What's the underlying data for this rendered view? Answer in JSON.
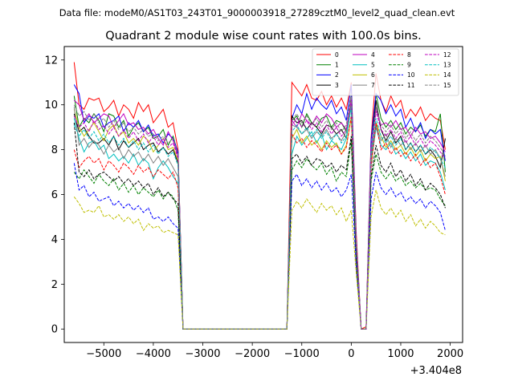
{
  "chart_data": {
    "type": "line",
    "suptitle": "Data file: modeM0/AS1T03_243T01_9000003918_27289cztM0_level2_quad_clean.evt",
    "title": "Quadrant 2 module wise count rates with 100.0s bins.",
    "xlabel": "",
    "ylabel": "",
    "offset_label": "+3.404e8",
    "xlim": [
      -5800,
      2250
    ],
    "ylim": [
      -0.6,
      12.6
    ],
    "xticks": [
      -5000,
      -4000,
      -3000,
      -2000,
      -1000,
      0,
      1000,
      2000
    ],
    "xtick_labels": [
      "−5000",
      "−4000",
      "−3000",
      "−2000",
      "−1000",
      "0",
      "1000",
      "2000"
    ],
    "yticks": [
      0,
      2,
      4,
      6,
      8,
      10,
      12
    ],
    "ytick_labels": [
      "0",
      "2",
      "4",
      "6",
      "8",
      "10",
      "12"
    ],
    "legend_position": "upper-right",
    "x": [
      -5600,
      -5500,
      -5400,
      -5300,
      -5200,
      -5100,
      -5000,
      -4900,
      -4800,
      -4700,
      -4600,
      -4500,
      -4400,
      -4300,
      -4200,
      -4100,
      -4000,
      -3900,
      -3800,
      -3700,
      -3600,
      -3500,
      -3400,
      -1300,
      -1200,
      -1100,
      -1000,
      -900,
      -800,
      -700,
      -600,
      -500,
      -400,
      -300,
      -200,
      -100,
      0,
      100,
      200,
      300,
      400,
      500,
      600,
      700,
      800,
      900,
      1000,
      1100,
      1200,
      1300,
      1400,
      1500,
      1600,
      1700,
      1800,
      1900
    ],
    "series": [
      {
        "name": "0",
        "color": "#ff0000",
        "dash": "solid",
        "values": [
          11.9,
          10.0,
          9.8,
          10.3,
          10.2,
          10.3,
          9.7,
          9.9,
          10.2,
          9.5,
          10.0,
          9.8,
          9.4,
          10.1,
          9.7,
          10.0,
          9.2,
          9.5,
          9.8,
          9.0,
          9.2,
          8.0,
          0.0,
          0.0,
          11.0,
          10.7,
          10.4,
          10.9,
          10.3,
          10.2,
          10.6,
          10.0,
          10.4,
          9.9,
          10.3,
          9.8,
          11.0,
          4.3,
          0.0,
          0.1,
          8.5,
          11.4,
          10.2,
          9.7,
          10.4,
          9.9,
          10.2,
          9.4,
          9.8,
          9.5,
          9.9,
          9.3,
          9.6,
          9.4,
          9.3,
          8.0
        ]
      },
      {
        "name": "1",
        "color": "#008000",
        "dash": "solid",
        "values": [
          10.4,
          9.0,
          9.4,
          9.2,
          9.6,
          9.3,
          8.8,
          9.6,
          9.5,
          9.0,
          9.3,
          8.6,
          9.0,
          9.2,
          8.8,
          9.0,
          8.5,
          8.6,
          8.9,
          8.2,
          8.6,
          7.8,
          0.0,
          0.0,
          9.3,
          9.5,
          9.0,
          9.6,
          9.2,
          9.0,
          9.4,
          9.5,
          9.0,
          9.3,
          9.2,
          8.8,
          10.4,
          3.9,
          0.0,
          0.0,
          7.8,
          10.5,
          9.4,
          9.0,
          9.3,
          8.9,
          9.2,
          8.7,
          9.0,
          8.8,
          9.1,
          8.6,
          8.9,
          8.8,
          9.6,
          7.0
        ]
      },
      {
        "name": "2",
        "color": "#0000ff",
        "dash": "solid",
        "values": [
          10.9,
          10.5,
          9.2,
          9.5,
          9.4,
          9.6,
          9.0,
          9.2,
          9.3,
          9.5,
          8.8,
          9.2,
          9.0,
          9.3,
          8.8,
          9.1,
          8.6,
          8.7,
          8.3,
          8.7,
          8.5,
          7.9,
          0.0,
          0.0,
          9.4,
          10.0,
          9.6,
          10.5,
          9.8,
          10.3,
          10.0,
          9.8,
          10.2,
          9.6,
          9.9,
          9.3,
          10.9,
          4.0,
          0.0,
          0.0,
          8.4,
          10.5,
          10.2,
          9.6,
          10.0,
          9.5,
          9.8,
          9.0,
          9.4,
          8.8,
          9.2,
          8.5,
          8.9,
          8.7,
          8.9,
          7.5
        ]
      },
      {
        "name": "3",
        "color": "#000000",
        "dash": "solid",
        "values": [
          9.6,
          8.8,
          9.0,
          8.6,
          8.3,
          8.3,
          8.5,
          8.2,
          8.6,
          8.0,
          8.4,
          8.1,
          8.3,
          8.5,
          8.0,
          8.2,
          8.3,
          7.9,
          8.1,
          7.8,
          8.0,
          7.4,
          0.0,
          0.0,
          9.5,
          9.2,
          9.3,
          8.9,
          9.2,
          9.0,
          8.7,
          9.1,
          9.0,
          8.7,
          8.9,
          8.5,
          10.0,
          3.8,
          0.0,
          0.0,
          7.8,
          10.2,
          8.9,
          8.4,
          8.8,
          8.3,
          8.6,
          8.0,
          8.3,
          7.9,
          8.2,
          7.8,
          8.0,
          7.7,
          7.2,
          8.5
        ]
      },
      {
        "name": "4",
        "color": "#bf00bf",
        "dash": "solid",
        "values": [
          10.2,
          10.0,
          9.3,
          9.6,
          9.2,
          9.4,
          9.6,
          9.5,
          9.0,
          9.3,
          9.6,
          9.1,
          9.2,
          8.9,
          9.0,
          8.7,
          8.9,
          8.5,
          8.2,
          8.8,
          8.4,
          7.7,
          0.0,
          0.0,
          9.3,
          9.0,
          9.6,
          9.3,
          9.1,
          9.5,
          9.2,
          9.6,
          9.4,
          9.0,
          9.2,
          8.9,
          10.1,
          3.8,
          0.0,
          0.0,
          8.0,
          9.8,
          9.1,
          9.2,
          9.0,
          9.3,
          8.9,
          9.0,
          8.6,
          9.0,
          8.7,
          8.8,
          8.5,
          8.6,
          8.3,
          7.9
        ]
      },
      {
        "name": "5",
        "color": "#00bfbf",
        "dash": "solid",
        "values": [
          9.4,
          8.5,
          7.9,
          8.3,
          8.4,
          8.0,
          8.2,
          7.6,
          7.8,
          7.5,
          7.7,
          7.4,
          7.8,
          7.3,
          7.6,
          7.4,
          6.7,
          7.2,
          7.5,
          7.2,
          6.8,
          6.5,
          0.0,
          0.0,
          7.8,
          8.6,
          8.2,
          8.5,
          8.8,
          8.3,
          8.7,
          8.0,
          8.4,
          8.2,
          8.0,
          8.5,
          10.0,
          3.6,
          0.0,
          0.0,
          7.3,
          9.0,
          8.2,
          8.0,
          8.3,
          7.8,
          8.0,
          7.6,
          7.9,
          7.5,
          7.8,
          7.3,
          7.5,
          7.4,
          7.0,
          6.2
        ]
      },
      {
        "name": "6",
        "color": "#bfbf00",
        "dash": "solid",
        "values": [
          9.8,
          9.0,
          8.6,
          8.9,
          9.2,
          8.8,
          8.4,
          8.9,
          9.1,
          8.6,
          8.8,
          8.3,
          8.5,
          8.2,
          8.6,
          8.4,
          7.9,
          8.2,
          8.5,
          8.0,
          8.1,
          7.5,
          0.0,
          0.0,
          8.5,
          8.9,
          8.3,
          8.6,
          8.2,
          8.4,
          8.0,
          8.4,
          8.1,
          8.3,
          7.8,
          8.2,
          9.4,
          3.5,
          0.0,
          0.0,
          7.3,
          9.2,
          8.6,
          8.1,
          8.4,
          8.0,
          8.2,
          7.8,
          8.1,
          7.7,
          8.0,
          7.5,
          7.8,
          7.6,
          7.7,
          6.6
        ]
      },
      {
        "name": "7",
        "color": "#808080",
        "dash": "solid",
        "values": [
          9.9,
          8.2,
          8.5,
          8.1,
          8.4,
          8.2,
          7.8,
          8.2,
          7.9,
          8.1,
          7.6,
          8.0,
          7.7,
          7.9,
          7.5,
          7.8,
          7.4,
          7.7,
          7.3,
          7.6,
          7.2,
          6.8,
          0.0,
          0.0,
          9.1,
          9.0,
          8.7,
          8.9,
          8.5,
          8.8,
          8.6,
          8.9,
          8.5,
          8.7,
          8.4,
          8.8,
          10.0,
          3.7,
          0.0,
          0.0,
          7.6,
          9.1,
          8.4,
          8.7,
          8.1,
          8.5,
          8.2,
          8.4,
          8.0,
          8.3,
          7.9,
          8.2,
          7.8,
          8.0,
          7.6,
          6.8
        ]
      },
      {
        "name": "8",
        "color": "#ff0000",
        "dash": "dashed",
        "values": [
          8.0,
          7.2,
          7.5,
          7.7,
          7.4,
          7.6,
          7.1,
          7.5,
          7.3,
          7.0,
          7.4,
          7.2,
          6.9,
          7.3,
          7.0,
          7.2,
          6.8,
          7.1,
          6.9,
          6.7,
          7.0,
          6.3,
          0.0,
          0.0,
          8.7,
          8.3,
          8.5,
          8.1,
          8.4,
          8.2,
          7.9,
          8.3,
          8.0,
          8.2,
          7.8,
          8.1,
          9.5,
          3.6,
          0.0,
          0.0,
          7.2,
          9.2,
          8.0,
          8.3,
          7.8,
          8.1,
          7.7,
          7.9,
          7.5,
          7.8,
          7.3,
          7.6,
          7.2,
          7.4,
          6.8,
          6.0
        ]
      },
      {
        "name": "9",
        "color": "#008000",
        "dash": "dashed",
        "values": [
          7.0,
          6.7,
          7.1,
          6.8,
          6.5,
          6.9,
          6.6,
          6.4,
          6.7,
          6.2,
          6.5,
          6.1,
          6.4,
          6.0,
          6.3,
          6.1,
          5.9,
          6.2,
          5.8,
          6.1,
          5.9,
          5.3,
          0.0,
          0.0,
          7.1,
          7.5,
          7.2,
          7.6,
          7.3,
          7.1,
          7.4,
          6.9,
          7.2,
          6.6,
          7.0,
          6.8,
          8.4,
          3.1,
          0.0,
          0.0,
          6.6,
          7.8,
          7.0,
          6.7,
          7.0,
          6.6,
          6.8,
          6.4,
          6.6,
          6.3,
          6.5,
          6.2,
          6.3,
          6.2,
          5.8,
          5.5
        ]
      },
      {
        "name": "10",
        "color": "#0000ff",
        "dash": "dashed",
        "values": [
          7.4,
          6.2,
          6.4,
          5.9,
          6.1,
          5.7,
          5.8,
          5.9,
          5.5,
          5.7,
          5.4,
          5.6,
          5.3,
          5.5,
          5.2,
          5.4,
          4.9,
          5.0,
          4.8,
          5.0,
          4.7,
          4.5,
          0.0,
          0.0,
          6.6,
          6.9,
          6.4,
          6.7,
          6.3,
          6.6,
          6.2,
          6.5,
          6.1,
          6.3,
          5.9,
          6.2,
          6.9,
          2.8,
          0.0,
          0.0,
          5.8,
          7.0,
          6.3,
          6.0,
          6.3,
          5.9,
          6.1,
          5.7,
          5.9,
          5.6,
          5.8,
          5.4,
          5.7,
          5.5,
          5.2,
          4.4
        ]
      },
      {
        "name": "11",
        "color": "#000000",
        "dash": "dashed",
        "values": [
          9.2,
          7.0,
          6.8,
          7.1,
          6.7,
          6.9,
          7.0,
          6.8,
          6.6,
          6.8,
          6.5,
          6.7,
          6.4,
          6.6,
          6.3,
          6.5,
          6.0,
          6.3,
          5.9,
          6.1,
          5.8,
          5.6,
          0.0,
          0.0,
          7.6,
          7.8,
          7.4,
          7.7,
          7.3,
          7.6,
          7.5,
          7.2,
          7.4,
          7.0,
          7.3,
          7.1,
          8.6,
          3.2,
          0.0,
          0.0,
          6.8,
          8.2,
          7.3,
          7.0,
          7.4,
          6.8,
          7.1,
          6.6,
          6.9,
          6.4,
          6.7,
          6.2,
          6.5,
          6.3,
          6.0,
          5.4
        ]
      },
      {
        "name": "12",
        "color": "#bf00bf",
        "dash": "dashed",
        "values": [
          9.5,
          9.0,
          9.2,
          8.8,
          9.3,
          8.9,
          9.1,
          8.7,
          9.0,
          8.6,
          8.9,
          8.5,
          8.8,
          8.4,
          8.7,
          8.3,
          8.6,
          8.2,
          8.5,
          8.1,
          8.3,
          7.6,
          0.0,
          0.0,
          9.1,
          9.4,
          9.0,
          9.3,
          8.9,
          9.2,
          8.8,
          9.1,
          8.7,
          9.0,
          8.6,
          8.9,
          10.3,
          3.8,
          0.0,
          0.0,
          7.8,
          9.7,
          8.9,
          8.6,
          8.9,
          8.5,
          8.8,
          8.3,
          8.6,
          8.2,
          8.5,
          8.1,
          8.4,
          8.2,
          7.9,
          7.6
        ]
      },
      {
        "name": "13",
        "color": "#00bfbf",
        "dash": "dashed",
        "values": [
          9.1,
          8.6,
          8.9,
          8.5,
          8.8,
          8.4,
          8.7,
          8.3,
          8.6,
          8.2,
          8.5,
          8.1,
          8.4,
          8.0,
          8.3,
          7.9,
          8.2,
          7.8,
          8.1,
          7.7,
          7.9,
          7.3,
          0.0,
          0.0,
          8.8,
          9.1,
          8.7,
          9.0,
          8.6,
          8.9,
          8.5,
          8.8,
          8.4,
          8.7,
          8.3,
          8.6,
          9.9,
          3.7,
          0.0,
          0.0,
          7.6,
          9.4,
          8.6,
          8.3,
          8.6,
          8.2,
          8.5,
          8.0,
          8.3,
          7.9,
          8.2,
          7.8,
          8.1,
          7.9,
          7.6,
          7.2
        ]
      },
      {
        "name": "14",
        "color": "#bfbf00",
        "dash": "dashed",
        "values": [
          5.9,
          5.6,
          5.2,
          5.3,
          5.2,
          5.5,
          5.0,
          5.1,
          4.9,
          5.1,
          4.8,
          5.0,
          4.7,
          4.9,
          4.4,
          4.7,
          4.5,
          4.6,
          4.3,
          4.4,
          4.3,
          4.2,
          0.0,
          0.0,
          5.3,
          5.7,
          5.4,
          5.8,
          5.5,
          5.2,
          5.6,
          5.3,
          5.5,
          5.1,
          5.4,
          4.8,
          5.3,
          2.5,
          0.0,
          0.0,
          5.0,
          6.2,
          5.4,
          5.1,
          5.4,
          5.0,
          5.3,
          4.8,
          5.1,
          4.6,
          4.9,
          4.5,
          4.8,
          4.6,
          4.3,
          4.2
        ]
      },
      {
        "name": "15",
        "color": "#808080",
        "dash": "dashed",
        "values": [
          10.0,
          9.5,
          9.7,
          9.3,
          9.6,
          9.2,
          9.4,
          9.0,
          9.3,
          8.9,
          9.2,
          8.8,
          9.0,
          8.7,
          8.9,
          8.6,
          8.7,
          8.4,
          8.6,
          8.3,
          8.5,
          7.8,
          0.0,
          0.0,
          9.3,
          9.6,
          9.2,
          9.5,
          9.1,
          9.4,
          9.0,
          9.3,
          8.9,
          9.2,
          8.8,
          9.1,
          10.5,
          3.9,
          0.0,
          0.0,
          8.0,
          9.9,
          9.1,
          8.8,
          9.1,
          8.7,
          9.0,
          8.5,
          8.8,
          8.4,
          8.7,
          8.3,
          8.6,
          8.4,
          8.1,
          7.7
        ]
      }
    ]
  }
}
